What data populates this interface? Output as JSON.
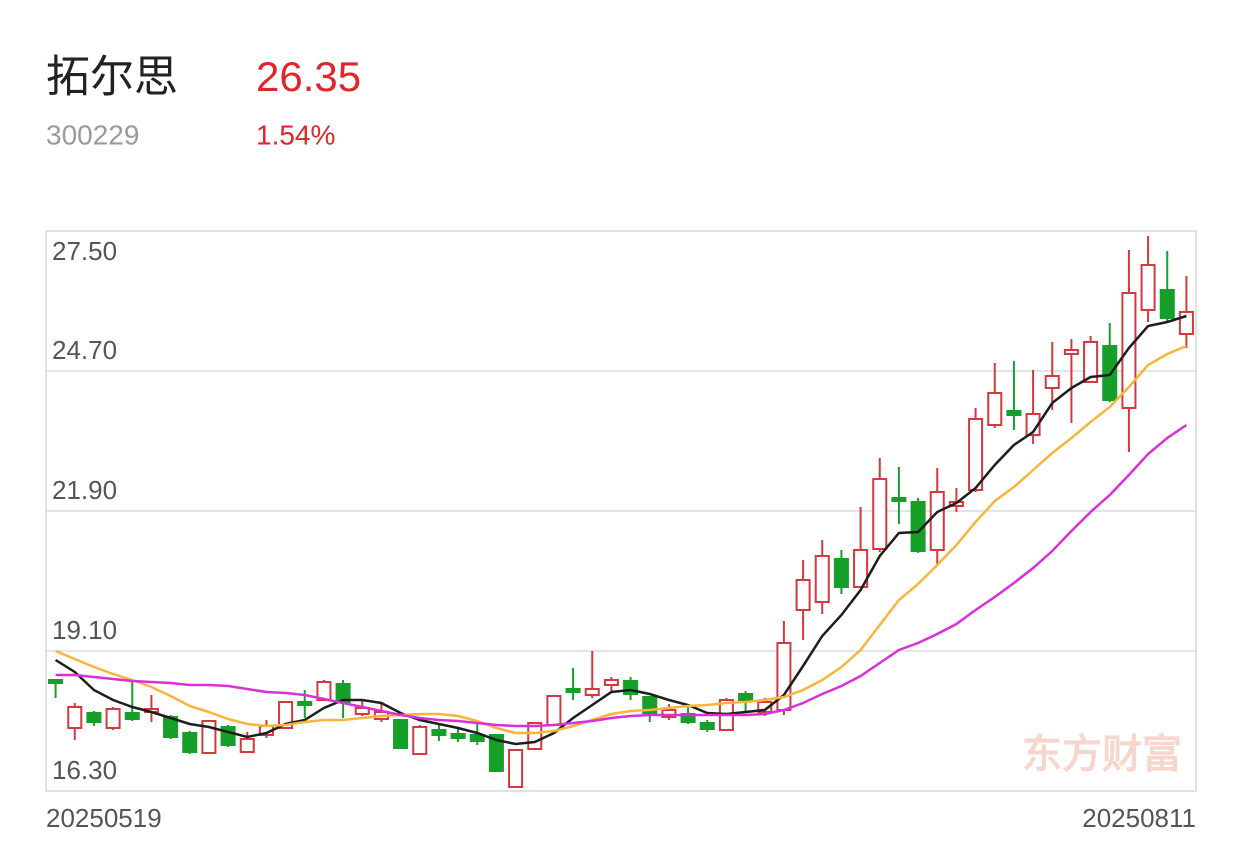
{
  "header": {
    "name": "拓尔思",
    "price": "26.35",
    "code": "300229",
    "change": "1.54%"
  },
  "watermark": "东方财富",
  "chart_data": {
    "type": "candlestick",
    "categories": [
      "20250519",
      null,
      null,
      null,
      null,
      null,
      null,
      null,
      null,
      null,
      null,
      null,
      null,
      null,
      null,
      null,
      null,
      null,
      null,
      null,
      null,
      null,
      null,
      null,
      null,
      null,
      null,
      null,
      null,
      null,
      null,
      null,
      null,
      null,
      null,
      null,
      null,
      null,
      null,
      null,
      null,
      null,
      null,
      null,
      null,
      null,
      null,
      null,
      null,
      null,
      null,
      null,
      null,
      null,
      null,
      null,
      null,
      null,
      null,
      "20250811"
    ],
    "open": [
      18.52,
      17.56,
      17.86,
      17.56,
      17.86,
      17.88,
      17.78,
      17.46,
      17.06,
      17.58,
      17.08,
      17.42,
      17.56,
      18.08,
      18.12,
      18.44,
      17.84,
      17.74,
      17.72,
      17.04,
      17.52,
      17.44,
      17.42,
      17.42,
      16.38,
      17.14,
      17.62,
      18.34,
      18.22,
      18.42,
      18.5,
      18.18,
      17.78,
      17.84,
      17.66,
      17.52,
      18.24,
      17.88,
      17.92,
      19.92,
      20.08,
      20.94,
      20.38,
      21.14,
      22.16,
      22.08,
      21.12,
      22.0,
      22.32,
      23.62,
      23.9,
      23.42,
      24.36,
      25.04,
      24.48,
      25.2,
      23.96,
      25.92,
      26.32,
      25.44
    ],
    "high": [
      18.54,
      18.06,
      17.9,
      17.98,
      18.52,
      18.22,
      17.82,
      17.5,
      17.72,
      17.62,
      17.48,
      17.72,
      18.1,
      18.32,
      18.52,
      18.52,
      18.12,
      18.08,
      17.74,
      17.62,
      17.64,
      17.56,
      17.64,
      17.44,
      17.12,
      17.68,
      18.22,
      18.76,
      19.1,
      18.58,
      18.58,
      18.18,
      18.04,
      18.0,
      17.72,
      18.16,
      18.3,
      18.16,
      19.7,
      20.92,
      21.32,
      21.12,
      21.98,
      22.96,
      22.78,
      22.16,
      22.76,
      22.36,
      23.96,
      24.86,
      24.9,
      24.72,
      25.28,
      25.34,
      25.4,
      25.66,
      27.12,
      27.4,
      27.1,
      26.6
    ],
    "low": [
      18.16,
      17.32,
      17.6,
      17.52,
      17.7,
      17.68,
      17.34,
      17.04,
      17.06,
      17.18,
      17.06,
      17.36,
      17.56,
      17.76,
      18.1,
      17.76,
      17.8,
      17.68,
      17.14,
      17.04,
      17.3,
      17.28,
      17.22,
      16.68,
      16.36,
      17.12,
      17.62,
      18.12,
      18.16,
      18.26,
      18.12,
      17.68,
      17.72,
      17.64,
      17.48,
      17.5,
      17.88,
      17.8,
      17.82,
      19.32,
      19.84,
      20.24,
      20.36,
      21.08,
      21.64,
      21.06,
      20.82,
      21.88,
      22.28,
      23.56,
      23.52,
      23.24,
      23.92,
      23.66,
      24.46,
      24.08,
      23.08,
      25.68,
      25.68,
      25.16
    ],
    "close": [
      18.46,
      17.98,
      17.68,
      17.94,
      17.74,
      17.94,
      17.38,
      17.08,
      17.7,
      17.22,
      17.34,
      17.6,
      18.08,
      18.02,
      18.48,
      18.08,
      17.96,
      17.88,
      17.16,
      17.58,
      17.42,
      17.36,
      17.3,
      16.7,
      17.12,
      17.66,
      18.2,
      18.28,
      18.34,
      18.52,
      18.24,
      17.86,
      17.92,
      17.68,
      17.54,
      18.12,
      18.12,
      18.08,
      19.26,
      20.52,
      21.0,
      20.38,
      21.12,
      22.54,
      22.1,
      21.1,
      22.28,
      22.08,
      23.74,
      24.26,
      23.82,
      23.84,
      24.6,
      25.12,
      25.28,
      24.12,
      26.26,
      26.82,
      25.76,
      25.88
    ],
    "up_color": "#d23a3f",
    "down_color": "#16a02a",
    "series": [
      {
        "color": "#1e1e1e",
        "values": [
          18.92,
          18.68,
          18.32,
          18.12,
          17.98,
          17.88,
          17.76,
          17.64,
          17.58,
          17.48,
          17.38,
          17.46,
          17.64,
          17.72,
          17.96,
          18.12,
          18.12,
          18.06,
          17.86,
          17.72,
          17.64,
          17.56,
          17.46,
          17.32,
          17.24,
          17.28,
          17.46,
          17.76,
          18.02,
          18.28,
          18.32,
          18.24,
          18.12,
          18.02,
          17.86,
          17.84,
          17.88,
          17.92,
          18.22,
          18.8,
          19.4,
          19.82,
          20.32,
          21.0,
          21.46,
          21.48,
          21.88,
          22.06,
          22.36,
          22.82,
          23.22,
          23.48,
          24.06,
          24.36,
          24.58,
          24.62,
          25.16,
          25.6,
          25.68,
          25.8
        ]
      },
      {
        "color": "#f7b53c",
        "values": [
          19.1,
          18.94,
          18.78,
          18.64,
          18.52,
          18.38,
          18.2,
          18.0,
          17.88,
          17.74,
          17.64,
          17.6,
          17.62,
          17.68,
          17.72,
          17.72,
          17.76,
          17.8,
          17.82,
          17.84,
          17.84,
          17.8,
          17.7,
          17.56,
          17.46,
          17.46,
          17.5,
          17.6,
          17.72,
          17.84,
          17.9,
          17.92,
          17.96,
          18.0,
          18.02,
          18.06,
          18.08,
          18.12,
          18.18,
          18.32,
          18.52,
          18.78,
          19.12,
          19.62,
          20.12,
          20.44,
          20.82,
          21.22,
          21.68,
          22.1,
          22.38,
          22.72,
          23.06,
          23.36,
          23.68,
          23.98,
          24.38,
          24.82,
          25.04,
          25.2
        ]
      },
      {
        "color": "#d930d9",
        "values": [
          18.62,
          18.62,
          18.58,
          18.54,
          18.5,
          18.48,
          18.46,
          18.42,
          18.42,
          18.4,
          18.34,
          18.28,
          18.26,
          18.22,
          18.14,
          18.06,
          17.98,
          17.9,
          17.82,
          17.76,
          17.72,
          17.7,
          17.66,
          17.62,
          17.6,
          17.6,
          17.62,
          17.66,
          17.7,
          17.76,
          17.8,
          17.82,
          17.82,
          17.82,
          17.82,
          17.82,
          17.82,
          17.84,
          17.92,
          18.06,
          18.24,
          18.4,
          18.6,
          18.86,
          19.12,
          19.26,
          19.44,
          19.64,
          19.92,
          20.18,
          20.46,
          20.76,
          21.1,
          21.5,
          21.88,
          22.22,
          22.62,
          23.04,
          23.36,
          23.62
        ]
      }
    ],
    "ylim": [
      16.3,
      27.5
    ],
    "yticks": [
      {
        "value": 16.3,
        "label": "16.30"
      },
      {
        "value": 19.1,
        "label": "19.10"
      },
      {
        "value": 21.9,
        "label": "21.90"
      },
      {
        "value": 24.7,
        "label": "24.70"
      },
      {
        "value": 27.5,
        "label": "27.50"
      }
    ],
    "grid": true
  }
}
